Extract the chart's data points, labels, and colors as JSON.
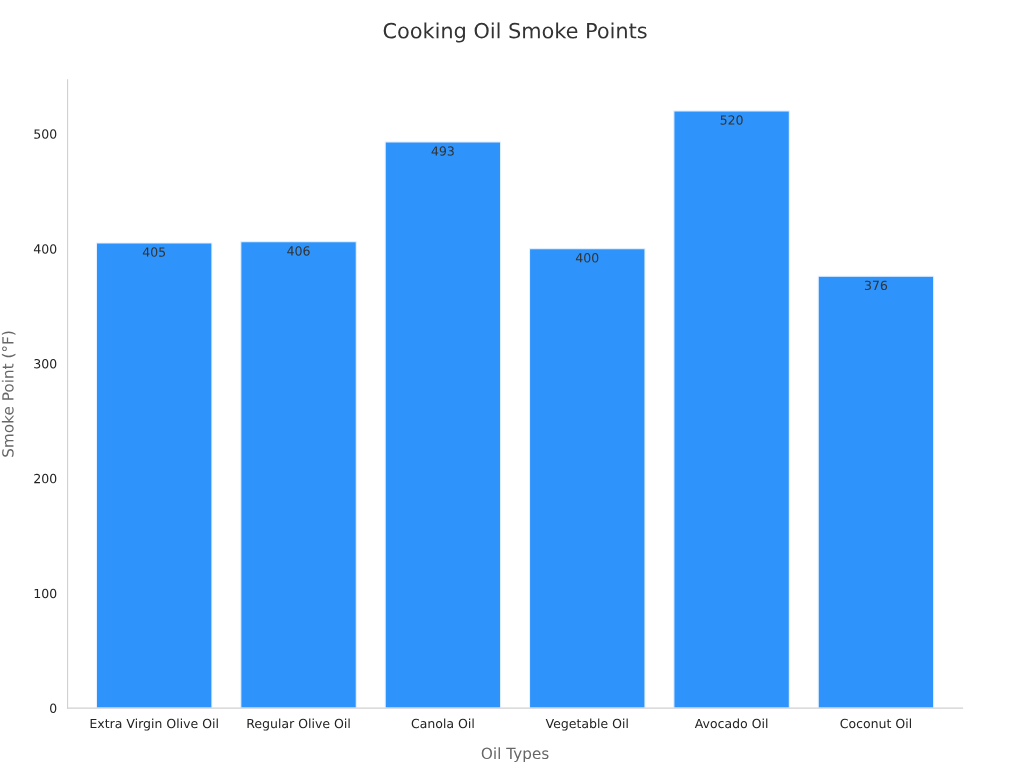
{
  "chart_data": {
    "type": "bar",
    "title": "Cooking Oil Smoke Points",
    "xlabel": "Oil Types",
    "ylabel": "Smoke Point (°F)",
    "categories": [
      "Extra Virgin Olive Oil",
      "Regular Olive Oil",
      "Canola Oil",
      "Vegetable Oil",
      "Avocado Oil",
      "Coconut Oil"
    ],
    "values": [
      405,
      406,
      493,
      400,
      520,
      376
    ],
    "color": "#2e93fa",
    "ylim": [
      0,
      547
    ],
    "yticks": [
      0,
      100,
      200,
      300,
      400,
      500
    ],
    "data_labels": true,
    "grid": false,
    "legend": false
  }
}
